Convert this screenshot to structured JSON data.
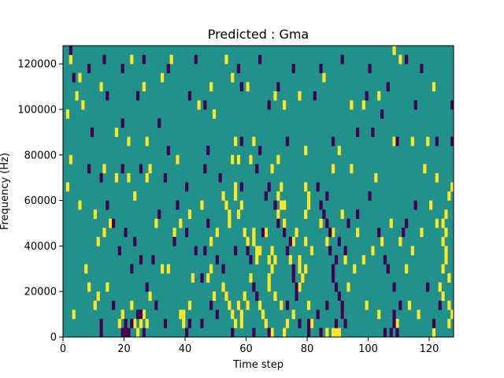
{
  "chart_data": {
    "type": "heatmap",
    "title": "Predicted : Gma",
    "xlabel": "Time step",
    "ylabel": "Frequency (Hz)",
    "xlim": [
      0,
      128
    ],
    "ylim": [
      0,
      128000
    ],
    "x_ticks": [
      0,
      20,
      40,
      60,
      80,
      100,
      120
    ],
    "y_ticks": [
      0,
      20000,
      40000,
      60000,
      80000,
      100000,
      120000
    ],
    "x_tick_labels": [
      "0",
      "20",
      "40",
      "60",
      "80",
      "100",
      "120"
    ],
    "y_tick_labels": [
      "0",
      "20000",
      "40000",
      "60000",
      "80000",
      "100000",
      "120000"
    ],
    "grid": false,
    "colormap": "viridis",
    "colors": {
      "background": "#21918c",
      "low": "#440154",
      "high": "#fde725"
    },
    "cell_size": {
      "time_steps": 1,
      "frequency_hz": 4000
    },
    "background_value": 0,
    "high_cells": [
      [
        2,
        120000
      ],
      [
        22,
        120000
      ],
      [
        35,
        120000
      ],
      [
        48,
        108000
      ],
      [
        53,
        120000
      ],
      [
        77,
        104000
      ],
      [
        85,
        112000
      ],
      [
        94,
        100000
      ],
      [
        108,
        124000
      ],
      [
        110,
        120000
      ],
      [
        4,
        104000
      ],
      [
        5,
        112000
      ],
      [
        12,
        108000
      ],
      [
        26,
        108000
      ],
      [
        32,
        112000
      ],
      [
        55,
        112000
      ],
      [
        60,
        108000
      ],
      [
        69,
        104000
      ],
      [
        72,
        100000
      ],
      [
        98,
        100000
      ],
      [
        103,
        104000
      ],
      [
        121,
        108000
      ],
      [
        6,
        100000
      ],
      [
        1,
        96000
      ],
      [
        44,
        100000
      ],
      [
        49,
        96000
      ],
      [
        17,
        88000
      ],
      [
        21,
        84000
      ],
      [
        27,
        84000
      ],
      [
        56,
        84000
      ],
      [
        62,
        84000
      ],
      [
        79,
        80000
      ],
      [
        90,
        80000
      ],
      [
        108,
        84000
      ],
      [
        114,
        84000
      ],
      [
        119,
        84000
      ],
      [
        2,
        76000
      ],
      [
        13,
        72000
      ],
      [
        17,
        68000
      ],
      [
        28,
        72000
      ],
      [
        37,
        76000
      ],
      [
        55,
        76000
      ],
      [
        57,
        76000
      ],
      [
        61,
        76000
      ],
      [
        68,
        72000
      ],
      [
        70,
        76000
      ],
      [
        88,
        72000
      ],
      [
        94,
        72000
      ],
      [
        102,
        68000
      ],
      [
        118,
        72000
      ],
      [
        1,
        64000
      ],
      [
        5,
        56000
      ],
      [
        10,
        52000
      ],
      [
        13,
        44000
      ],
      [
        11,
        40000
      ],
      [
        15,
        48000
      ],
      [
        21,
        68000
      ],
      [
        23,
        60000
      ],
      [
        27,
        68000
      ],
      [
        30,
        48000
      ],
      [
        36,
        44000
      ],
      [
        38,
        48000
      ],
      [
        41,
        52000
      ],
      [
        45,
        56000
      ],
      [
        48,
        40000
      ],
      [
        50,
        44000
      ],
      [
        52,
        60000
      ],
      [
        53,
        56000
      ],
      [
        54,
        52000
      ],
      [
        54,
        48000
      ],
      [
        56,
        60000
      ],
      [
        56,
        64000
      ],
      [
        57,
        52000
      ],
      [
        58,
        56000
      ],
      [
        59,
        44000
      ],
      [
        60,
        40000
      ],
      [
        62,
        40000
      ],
      [
        62,
        44000
      ],
      [
        63,
        36000
      ],
      [
        63,
        32000
      ],
      [
        64,
        36000
      ],
      [
        66,
        44000
      ],
      [
        67,
        32000
      ],
      [
        67,
        24000
      ],
      [
        67,
        20000
      ],
      [
        68,
        28000
      ],
      [
        68,
        36000
      ],
      [
        69,
        32000
      ],
      [
        69,
        16000
      ],
      [
        70,
        52000
      ],
      [
        70,
        60000
      ],
      [
        71,
        56000
      ],
      [
        71,
        64000
      ],
      [
        72,
        56000
      ],
      [
        72,
        48000
      ],
      [
        74,
        32000
      ],
      [
        75,
        40000
      ],
      [
        76,
        44000
      ],
      [
        77,
        32000
      ],
      [
        77,
        28000
      ],
      [
        77,
        20000
      ],
      [
        78,
        24000
      ],
      [
        79,
        28000
      ],
      [
        79,
        40000
      ],
      [
        79,
        52000
      ],
      [
        79,
        64000
      ],
      [
        80,
        56000
      ],
      [
        80,
        60000
      ],
      [
        81,
        36000
      ],
      [
        84,
        48000
      ],
      [
        86,
        40000
      ],
      [
        88,
        44000
      ],
      [
        91,
        52000
      ],
      [
        92,
        32000
      ],
      [
        95,
        28000
      ],
      [
        96,
        44000
      ],
      [
        98,
        32000
      ],
      [
        101,
        36000
      ],
      [
        104,
        40000
      ],
      [
        107,
        48000
      ],
      [
        110,
        40000
      ],
      [
        112,
        28000
      ],
      [
        114,
        36000
      ],
      [
        117,
        44000
      ],
      [
        120,
        56000
      ],
      [
        122,
        48000
      ],
      [
        124,
        40000
      ],
      [
        125,
        44000
      ],
      [
        125,
        32000
      ],
      [
        126,
        24000
      ],
      [
        124,
        16000
      ],
      [
        126,
        12000
      ],
      [
        127,
        8000
      ],
      [
        3,
        8000
      ],
      [
        7,
        28000
      ],
      [
        8,
        20000
      ],
      [
        10,
        12000
      ],
      [
        11,
        16000
      ],
      [
        14,
        20000
      ],
      [
        18,
        4000
      ],
      [
        19,
        8000
      ],
      [
        22,
        12000
      ],
      [
        23,
        4000
      ],
      [
        24,
        0
      ],
      [
        25,
        4000
      ],
      [
        26,
        8000
      ],
      [
        27,
        4000
      ],
      [
        28,
        16000
      ],
      [
        32,
        28000
      ],
      [
        34,
        28000
      ],
      [
        38,
        8000
      ],
      [
        39,
        4000
      ],
      [
        39,
        8000
      ],
      [
        41,
        12000
      ],
      [
        42,
        24000
      ],
      [
        47,
        24000
      ],
      [
        48,
        28000
      ],
      [
        49,
        16000
      ],
      [
        52,
        20000
      ],
      [
        53,
        16000
      ],
      [
        54,
        12000
      ],
      [
        55,
        8000
      ],
      [
        56,
        4000
      ],
      [
        57,
        12000
      ],
      [
        58,
        4000
      ],
      [
        58,
        8000
      ],
      [
        59,
        16000
      ],
      [
        60,
        12000
      ],
      [
        61,
        24000
      ],
      [
        64,
        12000
      ],
      [
        65,
        8000
      ],
      [
        66,
        4000
      ],
      [
        68,
        0
      ],
      [
        71,
        12000
      ],
      [
        72,
        0
      ],
      [
        73,
        4000
      ],
      [
        75,
        8000
      ],
      [
        80,
        12000
      ],
      [
        81,
        4000
      ],
      [
        86,
        0
      ],
      [
        88,
        0
      ],
      [
        89,
        0
      ],
      [
        90,
        0
      ],
      [
        91,
        8000
      ],
      [
        93,
        20000
      ],
      [
        99,
        12000
      ],
      [
        103,
        8000
      ],
      [
        109,
        4000
      ],
      [
        113,
        12000
      ],
      [
        116,
        8000
      ],
      [
        121,
        0
      ],
      [
        123,
        20000
      ],
      [
        124,
        28000
      ],
      [
        125,
        36000
      ],
      [
        126,
        4000
      ],
      [
        125,
        52000
      ],
      [
        127,
        64000
      ],
      [
        124,
        48000
      ],
      [
        122,
        68000
      ],
      [
        126,
        60000
      ]
    ],
    "low_cells": [
      [
        2,
        124000
      ],
      [
        8,
        116000
      ],
      [
        13,
        120000
      ],
      [
        19,
        116000
      ],
      [
        26,
        120000
      ],
      [
        34,
        116000
      ],
      [
        43,
        120000
      ],
      [
        57,
        116000
      ],
      [
        64,
        120000
      ],
      [
        70,
        108000
      ],
      [
        75,
        116000
      ],
      [
        84,
        116000
      ],
      [
        91,
        120000
      ],
      [
        100,
        116000
      ],
      [
        106,
        108000
      ],
      [
        112,
        120000
      ],
      [
        117,
        116000
      ],
      [
        127,
        100000
      ],
      [
        3,
        112000
      ],
      [
        14,
        104000
      ],
      [
        24,
        104000
      ],
      [
        41,
        104000
      ],
      [
        46,
        100000
      ],
      [
        58,
        108000
      ],
      [
        67,
        100000
      ],
      [
        82,
        104000
      ],
      [
        99,
        104000
      ],
      [
        104,
        96000
      ],
      [
        115,
        100000
      ],
      [
        9,
        88000
      ],
      [
        19,
        92000
      ],
      [
        31,
        92000
      ],
      [
        34,
        80000
      ],
      [
        47,
        80000
      ],
      [
        58,
        84000
      ],
      [
        64,
        80000
      ],
      [
        73,
        84000
      ],
      [
        88,
        84000
      ],
      [
        96,
        88000
      ],
      [
        101,
        88000
      ],
      [
        109,
        84000
      ],
      [
        122,
        84000
      ],
      [
        127,
        84000
      ],
      [
        8,
        72000
      ],
      [
        12,
        68000
      ],
      [
        19,
        72000
      ],
      [
        25,
        72000
      ],
      [
        33,
        68000
      ],
      [
        40,
        64000
      ],
      [
        46,
        72000
      ],
      [
        51,
        68000
      ],
      [
        58,
        64000
      ],
      [
        63,
        72000
      ],
      [
        66,
        60000
      ],
      [
        67,
        64000
      ],
      [
        69,
        56000
      ],
      [
        70,
        48000
      ],
      [
        72,
        44000
      ],
      [
        73,
        36000
      ],
      [
        74,
        40000
      ],
      [
        75,
        28000
      ],
      [
        75,
        24000
      ],
      [
        76,
        20000
      ],
      [
        76,
        16000
      ],
      [
        83,
        64000
      ],
      [
        84,
        56000
      ],
      [
        85,
        52000
      ],
      [
        86,
        60000
      ],
      [
        86,
        48000
      ],
      [
        87,
        44000
      ],
      [
        87,
        36000
      ],
      [
        88,
        28000
      ],
      [
        88,
        24000
      ],
      [
        89,
        20000
      ],
      [
        89,
        32000
      ],
      [
        90,
        40000
      ],
      [
        90,
        16000
      ],
      [
        91,
        8000
      ],
      [
        91,
        12000
      ],
      [
        92,
        4000
      ],
      [
        92,
        36000
      ],
      [
        93,
        48000
      ],
      [
        96,
        52000
      ],
      [
        100,
        60000
      ],
      [
        103,
        44000
      ],
      [
        105,
        32000
      ],
      [
        106,
        28000
      ],
      [
        108,
        20000
      ],
      [
        108,
        8000
      ],
      [
        108,
        4000
      ],
      [
        107,
        0
      ],
      [
        109,
        0
      ],
      [
        105,
        0
      ],
      [
        110,
        12000
      ],
      [
        111,
        44000
      ],
      [
        112,
        48000
      ],
      [
        115,
        56000
      ],
      [
        119,
        20000
      ],
      [
        121,
        4000
      ],
      [
        123,
        12000
      ],
      [
        14,
        56000
      ],
      [
        16,
        48000
      ],
      [
        18,
        36000
      ],
      [
        20,
        44000
      ],
      [
        22,
        28000
      ],
      [
        23,
        40000
      ],
      [
        25,
        32000
      ],
      [
        27,
        20000
      ],
      [
        29,
        32000
      ],
      [
        31,
        52000
      ],
      [
        36,
        40000
      ],
      [
        37,
        56000
      ],
      [
        40,
        44000
      ],
      [
        43,
        36000
      ],
      [
        45,
        24000
      ],
      [
        46,
        36000
      ],
      [
        47,
        48000
      ],
      [
        50,
        32000
      ],
      [
        52,
        28000
      ],
      [
        56,
        36000
      ],
      [
        60,
        36000
      ],
      [
        61,
        32000
      ],
      [
        62,
        20000
      ],
      [
        63,
        16000
      ],
      [
        65,
        44000
      ],
      [
        12,
        4000
      ],
      [
        12,
        0
      ],
      [
        16,
        12000
      ],
      [
        19,
        0
      ],
      [
        20,
        0
      ],
      [
        20,
        4000
      ],
      [
        21,
        0
      ],
      [
        22,
        4000
      ],
      [
        24,
        8000
      ],
      [
        25,
        8000
      ],
      [
        26,
        0
      ],
      [
        30,
        12000
      ],
      [
        33,
        4000
      ],
      [
        40,
        0
      ],
      [
        41,
        4000
      ],
      [
        45,
        4000
      ],
      [
        48,
        12000
      ],
      [
        50,
        8000
      ],
      [
        55,
        0
      ],
      [
        62,
        0
      ],
      [
        67,
        0
      ],
      [
        73,
        12000
      ],
      [
        77,
        4000
      ],
      [
        80,
        4000
      ],
      [
        80,
        0
      ],
      [
        83,
        8000
      ],
      [
        84,
        0
      ],
      [
        86,
        12000
      ],
      [
        89,
        4000
      ]
    ]
  }
}
